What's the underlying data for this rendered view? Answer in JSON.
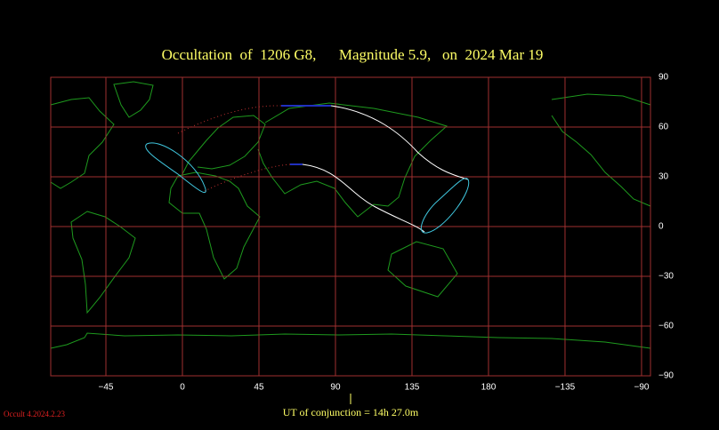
{
  "map": {
    "title": "Occultation  of  1206 G8,      Magnitude 5.9,   on  2024 Mar 19",
    "longitude_ticks": [
      {
        "value": -45,
        "label": "−45"
      },
      0,
      45,
      90,
      135,
      180,
      {
        "value": -135,
        "label": "−135"
      },
      {
        "value": -90,
        "label": "−90"
      }
    ],
    "latitude_ticks": [
      90,
      60,
      30,
      0,
      {
        "value": -30,
        "label": "−30"
      },
      {
        "value": -60,
        "label": "−60"
      },
      {
        "value": -90,
        "label": "−90"
      }
    ],
    "conjunction": "UT of conjunction = 14h 27.0m",
    "version": "Occult 4.2024.2.23"
  }
}
